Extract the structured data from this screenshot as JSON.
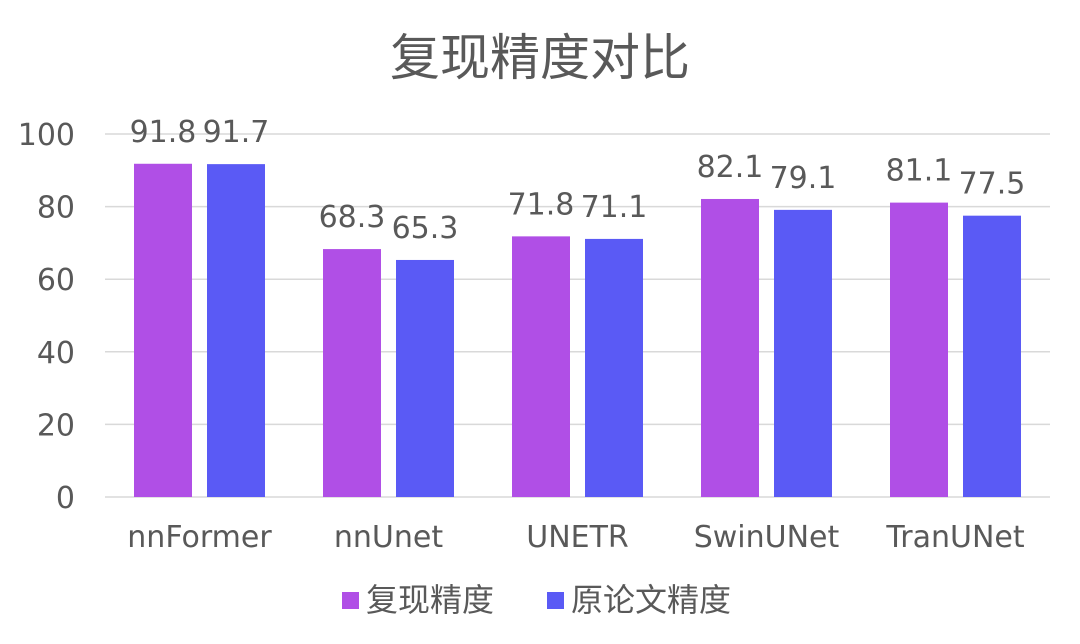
{
  "chart_data": {
    "type": "bar",
    "title": "复现精度对比",
    "categories": [
      "nnFormer",
      "nnUnet",
      "UNETR",
      "SwinUNet",
      "TranUNet"
    ],
    "series": [
      {
        "name": "复现精度",
        "values": [
          91.8,
          68.3,
          71.8,
          82.1,
          81.1
        ],
        "color": "#b04fe6"
      },
      {
        "name": "原论文精度",
        "values": [
          91.7,
          65.3,
          71.1,
          79.1,
          77.5
        ],
        "color": "#5a5af5"
      }
    ],
    "ylim": [
      0,
      100
    ],
    "yticks": [
      "0",
      "20",
      "40",
      "60",
      "80",
      "100"
    ],
    "grid": true,
    "legend": "bottom",
    "xlabel": "",
    "ylabel": ""
  }
}
